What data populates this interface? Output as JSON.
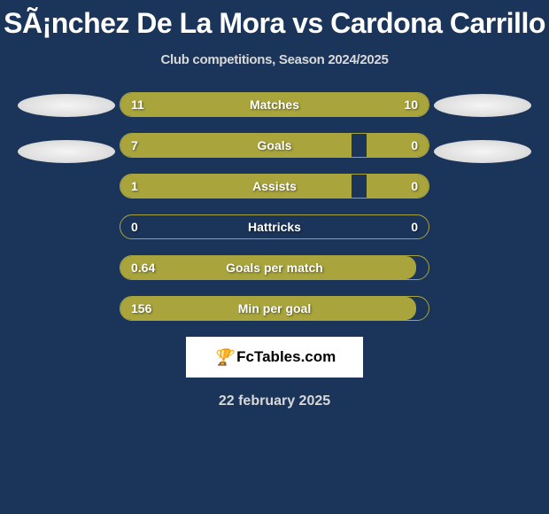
{
  "title": "SÃ¡nchez De La Mora vs Cardona Carrillo",
  "subtitle": "Club competitions, Season 2024/2025",
  "date": "22 february 2025",
  "watermark": {
    "text": "FcTables.com"
  },
  "colors": {
    "background": "#1a3559",
    "bar_fill": "#a9a53c",
    "bar_border": "#a9a53c",
    "text_primary": "#ffffff",
    "text_secondary": "#d8d8d8",
    "watermark_bg": "#ffffff",
    "watermark_text": "#000000"
  },
  "stats": [
    {
      "label": "Matches",
      "left_value": "11",
      "right_value": "10",
      "left_pct": 52,
      "right_pct": 48
    },
    {
      "label": "Goals",
      "left_value": "7",
      "right_value": "0",
      "left_pct": 75,
      "right_pct": 20
    },
    {
      "label": "Assists",
      "left_value": "1",
      "right_value": "0",
      "left_pct": 75,
      "right_pct": 20
    },
    {
      "label": "Hattricks",
      "left_value": "0",
      "right_value": "0",
      "left_pct": 0,
      "right_pct": 0
    },
    {
      "label": "Goals per match",
      "left_value": "0.64",
      "right_value": "",
      "left_pct": 96,
      "right_pct": 0
    },
    {
      "label": "Min per goal",
      "left_value": "156",
      "right_value": "",
      "left_pct": 96,
      "right_pct": 0
    }
  ]
}
